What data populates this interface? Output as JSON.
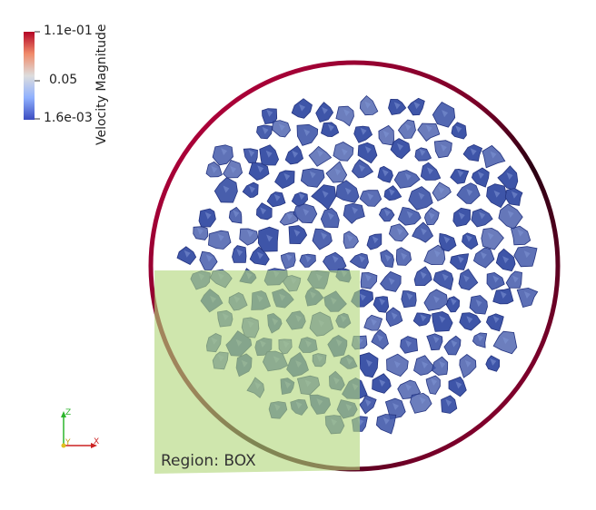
{
  "legend": {
    "title": "Velocity Magnitude",
    "max_label": "1.1e-01",
    "mid_label": "0.05",
    "min_label": "1.6e-03",
    "colors": {
      "high": "#b40426",
      "mid": "#dddddd",
      "low": "#3b4cc0"
    }
  },
  "region": {
    "label": "Region: BOX",
    "fill": "#b2d67a"
  },
  "axes": {
    "z": "Z",
    "y": "Y",
    "x": "X"
  },
  "particles": {
    "color": "#3e55a8"
  },
  "ring": {
    "colors": [
      "#a0003a",
      "#3b0018"
    ]
  }
}
